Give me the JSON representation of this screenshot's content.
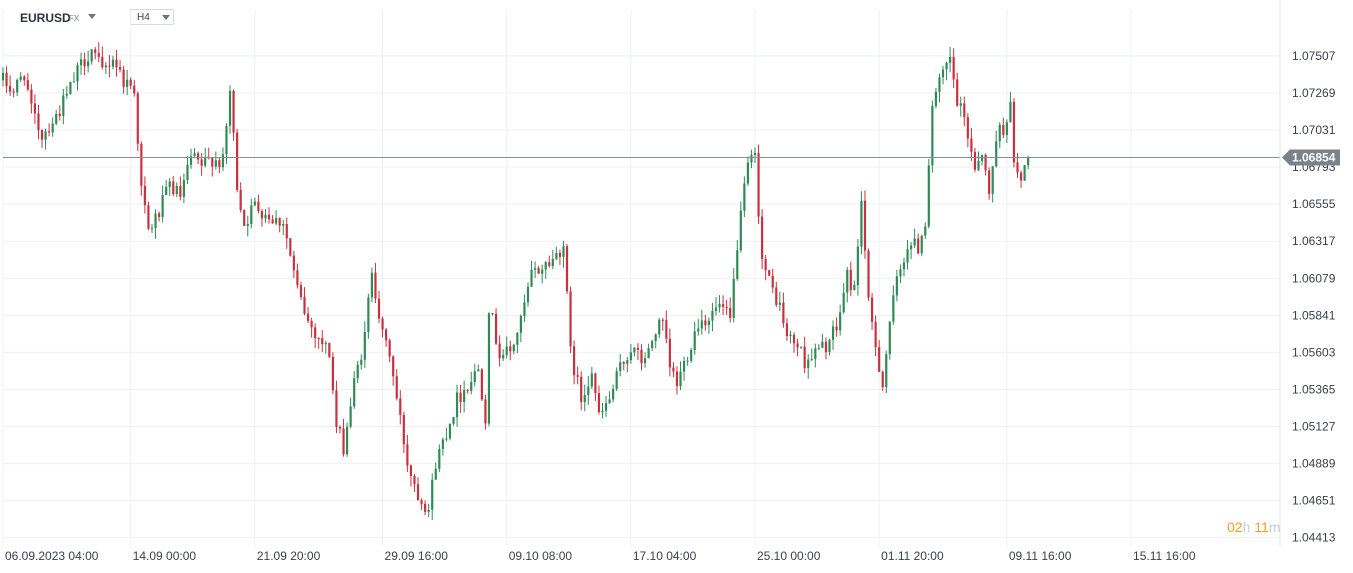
{
  "toolbar": {
    "symbol": "EURUSD",
    "market": "FX",
    "timeframe": "H4"
  },
  "countdown": {
    "hours": "02",
    "hours_unit": "h",
    "minutes": "11",
    "minutes_unit": "m"
  },
  "colors": {
    "up": "#2e8b57",
    "down": "#c8313f",
    "current_line": "#8a8f96",
    "grid": "#eef0f3"
  },
  "chart_data": {
    "type": "candlestick",
    "symbol": "EURUSD",
    "timeframe": "H4",
    "current_price": 1.06854,
    "current_price_label": "1.06854",
    "ylim": [
      1.0436,
      1.0775
    ],
    "y_ticks": [
      1.07507,
      1.07269,
      1.07031,
      1.06793,
      1.06555,
      1.06317,
      1.06079,
      1.05841,
      1.05603,
      1.05365,
      1.05127,
      1.04889,
      1.04651,
      1.04413
    ],
    "y_tick_labels": [
      "1.07507",
      "1.07269",
      "1.07031",
      "1.06793",
      "1.06555",
      "1.06317",
      "1.06079",
      "1.05841",
      "1.05603",
      "1.05365",
      "1.05127",
      "1.04889",
      "1.04651",
      "1.04413"
    ],
    "x_range": [
      0,
      360
    ],
    "x_ticks": [
      {
        "i": 0,
        "label": "06.09.2023  04:00"
      },
      {
        "i": 36,
        "label": "14.09  00:00"
      },
      {
        "i": 71,
        "label": "21.09  20:00"
      },
      {
        "i": 107,
        "label": "29.09  16:00"
      },
      {
        "i": 142,
        "label": "09.10  08:00"
      },
      {
        "i": 177,
        "label": "17.10  04:00"
      },
      {
        "i": 212,
        "label": "25.10  00:00"
      },
      {
        "i": 247,
        "label": "01.11  20:00"
      },
      {
        "i": 283,
        "label": "09.11  16:00"
      },
      {
        "i": 318,
        "label": "15.11  16:00"
      }
    ],
    "path": [
      [
        0,
        1.0735
      ],
      [
        3,
        1.0728
      ],
      [
        6,
        1.074
      ],
      [
        8,
        1.0715
      ],
      [
        11,
        1.07
      ],
      [
        15,
        1.0712
      ],
      [
        18,
        1.0725
      ],
      [
        22,
        1.0745
      ],
      [
        25,
        1.0755
      ],
      [
        28,
        1.074
      ],
      [
        31,
        1.075
      ],
      [
        34,
        1.0735
      ],
      [
        37,
        1.073
      ],
      [
        39,
        1.0665
      ],
      [
        41,
        1.0638
      ],
      [
        44,
        1.065
      ],
      [
        47,
        1.0668
      ],
      [
        50,
        1.066
      ],
      [
        53,
        1.0685
      ],
      [
        56,
        1.068
      ],
      [
        59,
        1.0685
      ],
      [
        62,
        1.0682
      ],
      [
        64,
        1.0728
      ],
      [
        66,
        1.0668
      ],
      [
        68,
        1.0643
      ],
      [
        71,
        1.0655
      ],
      [
        74,
        1.065
      ],
      [
        77,
        1.0645
      ],
      [
        79,
        1.0645
      ],
      [
        81,
        1.0622
      ],
      [
        83,
        1.06
      ],
      [
        86,
        1.058
      ],
      [
        89,
        1.057
      ],
      [
        92,
        1.056
      ],
      [
        94,
        1.0512
      ],
      [
        96,
        1.05
      ],
      [
        99,
        1.054
      ],
      [
        102,
        1.057
      ],
      [
        104,
        1.0615
      ],
      [
        107,
        1.057
      ],
      [
        109,
        1.056
      ],
      [
        111,
        1.053
      ],
      [
        114,
        1.049
      ],
      [
        117,
        1.047
      ],
      [
        120,
        1.046
      ],
      [
        122,
        1.049
      ],
      [
        125,
        1.051
      ],
      [
        128,
        1.053
      ],
      [
        131,
        1.054
      ],
      [
        134,
        1.055
      ],
      [
        136,
        1.052
      ],
      [
        137,
        1.059
      ],
      [
        140,
        1.056
      ],
      [
        143,
        1.056
      ],
      [
        146,
        1.058
      ],
      [
        149,
        1.061
      ],
      [
        152,
        1.0615
      ],
      [
        155,
        1.062
      ],
      [
        158,
        1.063
      ],
      [
        160,
        1.056
      ],
      [
        163,
        1.053
      ],
      [
        166,
        1.055
      ],
      [
        168,
        1.0518
      ],
      [
        171,
        1.053
      ],
      [
        174,
        1.055
      ],
      [
        177,
        1.0563
      ],
      [
        180,
        1.0555
      ],
      [
        182,
        1.056
      ],
      [
        184,
        1.0575
      ],
      [
        186,
        1.0578
      ],
      [
        188,
        1.055
      ],
      [
        190,
        1.054
      ],
      [
        193,
        1.056
      ],
      [
        196,
        1.058
      ],
      [
        199,
        1.0583
      ],
      [
        202,
        1.059
      ],
      [
        205,
        1.058
      ],
      [
        207,
        1.063
      ],
      [
        210,
        1.068
      ],
      [
        212,
        1.0685
      ],
      [
        214,
        1.062
      ],
      [
        216,
        1.0605
      ],
      [
        219,
        1.059
      ],
      [
        221,
        1.057
      ],
      [
        224,
        1.0565
      ],
      [
        226,
        1.0555
      ],
      [
        229,
        1.056
      ],
      [
        232,
        1.0565
      ],
      [
        235,
        1.0575
      ],
      [
        238,
        1.061
      ],
      [
        240,
        1.06
      ],
      [
        242,
        1.066
      ],
      [
        244,
        1.059
      ],
      [
        246,
        1.0565
      ],
      [
        248,
        1.054
      ],
      [
        250,
        1.058
      ],
      [
        252,
        1.0605
      ],
      [
        255,
        1.063
      ],
      [
        258,
        1.0628
      ],
      [
        260,
        1.0645
      ],
      [
        262,
        1.072
      ],
      [
        265,
        1.0738
      ],
      [
        267,
        1.0748
      ],
      [
        269,
        1.072
      ],
      [
        271,
        1.071
      ],
      [
        274,
        1.068
      ],
      [
        276,
        1.069
      ],
      [
        278,
        1.066
      ],
      [
        280,
        1.07
      ],
      [
        282,
        1.0705
      ],
      [
        284,
        1.0718
      ],
      [
        285,
        1.068
      ],
      [
        287,
        1.067
      ],
      [
        289,
        1.0685
      ]
    ]
  }
}
